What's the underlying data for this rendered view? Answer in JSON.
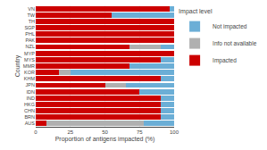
{
  "chart_data": {
    "type": "bar",
    "orientation": "horizontal",
    "stacked": true,
    "xlabel": "Proportion of antigens impacted (%)",
    "ylabel": "Country",
    "legend_title": "Impact level",
    "legend": "right",
    "categories": [
      "VN",
      "TW",
      "TH",
      "SGP",
      "PHL",
      "PAK",
      "NZL",
      "MYP",
      "MYS",
      "MMR",
      "KOR",
      "KHM",
      "JPN",
      "IDN",
      "IND",
      "HKG",
      "CHN",
      "BRN",
      "AUS"
    ],
    "series": [
      {
        "name": "Impacted",
        "color": "#cc0000",
        "values": [
          97,
          55,
          100,
          100,
          100,
          100,
          68,
          100,
          90,
          68,
          17,
          90,
          50,
          75,
          90,
          90,
          90,
          90,
          8
        ]
      },
      {
        "name": "Info not available",
        "color": "#b0b0b0",
        "values": [
          0,
          0,
          0,
          0,
          0,
          0,
          22,
          0,
          0,
          0,
          8,
          0,
          15,
          0,
          0,
          0,
          0,
          0,
          70
        ]
      },
      {
        "name": "Not impacted",
        "color": "#6baed6",
        "values": [
          3,
          45,
          0,
          0,
          0,
          0,
          10,
          0,
          10,
          32,
          75,
          10,
          35,
          25,
          10,
          10,
          10,
          10,
          22
        ]
      }
    ],
    "xlim": [
      0,
      100
    ],
    "xticks": [
      0,
      25,
      50,
      75,
      100
    ],
    "grid": true
  }
}
